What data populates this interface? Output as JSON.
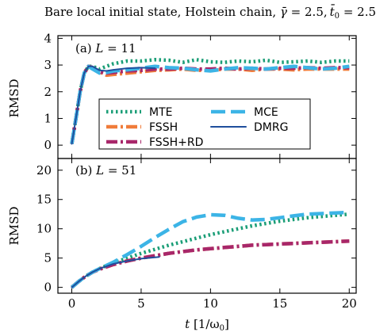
{
  "chart_data": [
    {
      "type": "line",
      "panel_label": "(a) L = 11",
      "ylabel": "RMSD",
      "xlim": [
        -1,
        20.5
      ],
      "ylim": [
        -0.5,
        4.1
      ],
      "yticks": [
        0,
        1,
        2,
        3,
        4
      ],
      "xticks": [
        0,
        5,
        10,
        15,
        20
      ],
      "legend_placement": "center",
      "series": [
        {
          "name": "MTE",
          "color": "#1b9e77",
          "style": "dotted",
          "x": [
            0,
            0.3,
            0.6,
            0.9,
            1.2,
            1.5,
            2,
            2.5,
            3,
            3.5,
            4,
            5,
            6,
            7,
            8,
            9,
            10,
            11,
            12,
            13,
            14,
            15,
            16,
            17,
            18,
            19,
            20
          ],
          "y": [
            0.05,
            1.0,
            2.0,
            2.7,
            2.95,
            2.95,
            2.85,
            2.95,
            3.05,
            3.1,
            3.15,
            3.15,
            3.2,
            3.18,
            3.1,
            3.2,
            3.12,
            3.1,
            3.15,
            3.12,
            3.18,
            3.1,
            3.12,
            3.15,
            3.1,
            3.15,
            3.15
          ]
        },
        {
          "name": "FSSH",
          "color": "#f07c3a",
          "style": "dashdot",
          "x": [
            0,
            0.3,
            0.6,
            0.9,
            1.2,
            1.5,
            2,
            2.5,
            3,
            4,
            5,
            6,
            7,
            8,
            9,
            10,
            11,
            12,
            13,
            14,
            15,
            16,
            17,
            18,
            19,
            20
          ],
          "y": [
            0.05,
            1.0,
            2.0,
            2.7,
            2.95,
            2.9,
            2.75,
            2.62,
            2.65,
            2.7,
            2.75,
            2.8,
            2.82,
            2.85,
            2.8,
            2.8,
            2.85,
            2.85,
            2.8,
            2.85,
            2.85,
            2.82,
            2.85,
            2.85,
            2.85,
            2.85
          ]
        },
        {
          "name": "FSSH+RD",
          "color": "#a8276a",
          "style": "dashdot",
          "x": [
            0,
            0.3,
            0.6,
            0.9,
            1.2,
            1.5,
            2,
            2.5,
            3,
            4,
            5,
            6,
            7,
            8,
            9,
            10,
            11,
            12,
            13,
            14,
            15,
            16,
            17,
            18,
            19,
            20
          ],
          "y": [
            0.05,
            1.0,
            2.0,
            2.7,
            2.95,
            2.9,
            2.75,
            2.7,
            2.72,
            2.78,
            2.8,
            2.85,
            2.85,
            2.88,
            2.85,
            2.85,
            2.88,
            2.85,
            2.88,
            2.85,
            2.88,
            2.88,
            2.9,
            2.88,
            2.9,
            2.9
          ]
        },
        {
          "name": "MCE",
          "color": "#3cb4e6",
          "style": "dashed",
          "x": [
            0,
            0.3,
            0.6,
            0.9,
            1.2,
            1.5,
            2,
            2.5,
            3,
            4,
            5,
            6,
            7,
            8,
            9,
            10,
            11,
            12,
            13,
            14,
            15,
            16,
            17,
            18,
            19,
            20
          ],
          "y": [
            0.05,
            1.0,
            2.0,
            2.7,
            2.95,
            2.85,
            2.7,
            2.72,
            2.78,
            2.82,
            2.88,
            2.95,
            2.9,
            2.88,
            2.82,
            2.78,
            2.85,
            2.9,
            2.88,
            2.85,
            2.9,
            2.95,
            2.9,
            2.85,
            2.88,
            2.95
          ]
        },
        {
          "name": "DMRG",
          "color": "#1f4e9c",
          "style": "solid",
          "x": [
            0,
            0.3,
            0.6,
            0.9,
            1.2,
            1.5,
            2,
            2.5,
            3,
            3.5,
            4,
            5,
            6
          ],
          "y": [
            0.05,
            1.0,
            2.0,
            2.7,
            2.95,
            2.95,
            2.8,
            2.78,
            2.82,
            2.85,
            2.88,
            2.9,
            2.88
          ]
        }
      ]
    },
    {
      "type": "line",
      "panel_label": "(b) L = 51",
      "ylabel": "RMSD",
      "xlabel": "t [1/ω0]",
      "xlim": [
        -1,
        20.5
      ],
      "ylim": [
        -1,
        22
      ],
      "yticks": [
        0,
        5,
        10,
        15,
        20
      ],
      "xticks": [
        0,
        5,
        10,
        15,
        20
      ],
      "series": [
        {
          "name": "MTE",
          "color": "#1b9e77",
          "style": "dotted",
          "x": [
            0,
            0.5,
            1,
            1.5,
            2,
            3,
            4,
            5,
            6,
            7,
            8,
            9,
            10,
            11,
            12,
            13,
            14,
            15,
            16,
            17,
            18,
            19,
            20
          ],
          "y": [
            0,
            1.0,
            1.9,
            2.6,
            3.2,
            4.2,
            5.0,
            5.8,
            6.5,
            7.2,
            7.8,
            8.4,
            9.0,
            9.5,
            10.0,
            10.5,
            10.9,
            11.3,
            11.6,
            11.9,
            12.1,
            12.3,
            12.5
          ]
        },
        {
          "name": "FSSH",
          "color": "#f07c3a",
          "style": "dashdot",
          "x": [
            0,
            0.5,
            1,
            1.5,
            2,
            3,
            4,
            5,
            6,
            7,
            8,
            9,
            10,
            11,
            12,
            13,
            14,
            15,
            16,
            17,
            18,
            19,
            20
          ],
          "y": [
            0,
            1.0,
            1.9,
            2.6,
            3.1,
            3.9,
            4.5,
            5.0,
            5.4,
            5.8,
            6.1,
            6.4,
            6.6,
            6.8,
            7.0,
            7.2,
            7.3,
            7.4,
            7.5,
            7.6,
            7.7,
            7.8,
            7.9
          ]
        },
        {
          "name": "FSSH+RD",
          "color": "#a8276a",
          "style": "dashdot",
          "x": [
            0,
            0.5,
            1,
            1.5,
            2,
            3,
            4,
            5,
            6,
            7,
            8,
            9,
            10,
            11,
            12,
            13,
            14,
            15,
            16,
            17,
            18,
            19,
            20
          ],
          "y": [
            0,
            1.0,
            1.9,
            2.6,
            3.1,
            3.9,
            4.5,
            5.0,
            5.4,
            5.8,
            6.1,
            6.4,
            6.6,
            6.8,
            7.0,
            7.2,
            7.3,
            7.4,
            7.5,
            7.6,
            7.7,
            7.8,
            7.9
          ]
        },
        {
          "name": "MCE",
          "color": "#3cb4e6",
          "style": "dashed",
          "x": [
            0,
            0.5,
            1,
            1.5,
            2,
            3,
            4,
            5,
            6,
            7,
            8,
            9,
            10,
            11,
            12,
            13,
            14,
            15,
            16,
            17,
            18,
            19,
            20
          ],
          "y": [
            0,
            1.0,
            1.9,
            2.6,
            3.2,
            4.3,
            5.6,
            7.0,
            8.5,
            9.9,
            11.2,
            12.0,
            12.4,
            12.3,
            11.8,
            11.5,
            11.6,
            11.9,
            12.2,
            12.5,
            12.6,
            12.7,
            12.8
          ]
        },
        {
          "name": "DMRG",
          "color": "#1f4e9c",
          "style": "solid",
          "x": [
            0,
            0.5,
            1,
            1.5,
            2,
            3,
            4,
            5,
            6.3
          ],
          "y": [
            0,
            1.0,
            1.9,
            2.6,
            3.2,
            4.0,
            4.5,
            4.9,
            5.2
          ]
        }
      ]
    }
  ],
  "text": {
    "title_prefix": "Bare local initial state, Holstein chain, ",
    "gamma_sym": "γ̄",
    "gamma_eq": " = 2.5,",
    "t0_sym": "t̄",
    "t0_sub": "0",
    "t0_eq": " = 2.5",
    "panel_a_prefix": "(a) ",
    "panel_a_var": "L",
    "panel_a_eq": " = 11",
    "panel_b_prefix": "(b) ",
    "panel_b_var": "L",
    "panel_b_eq": " = 51",
    "ylabel_a": "RMSD",
    "ylabel_b": "RMSD",
    "xlabel_var": "t",
    "xlabel_unit": " [1/ω",
    "xlabel_sub": "0",
    "xlabel_close": "]",
    "legend": [
      "MTE",
      "FSSH",
      "FSSH+RD",
      "MCE",
      "DMRG"
    ]
  }
}
